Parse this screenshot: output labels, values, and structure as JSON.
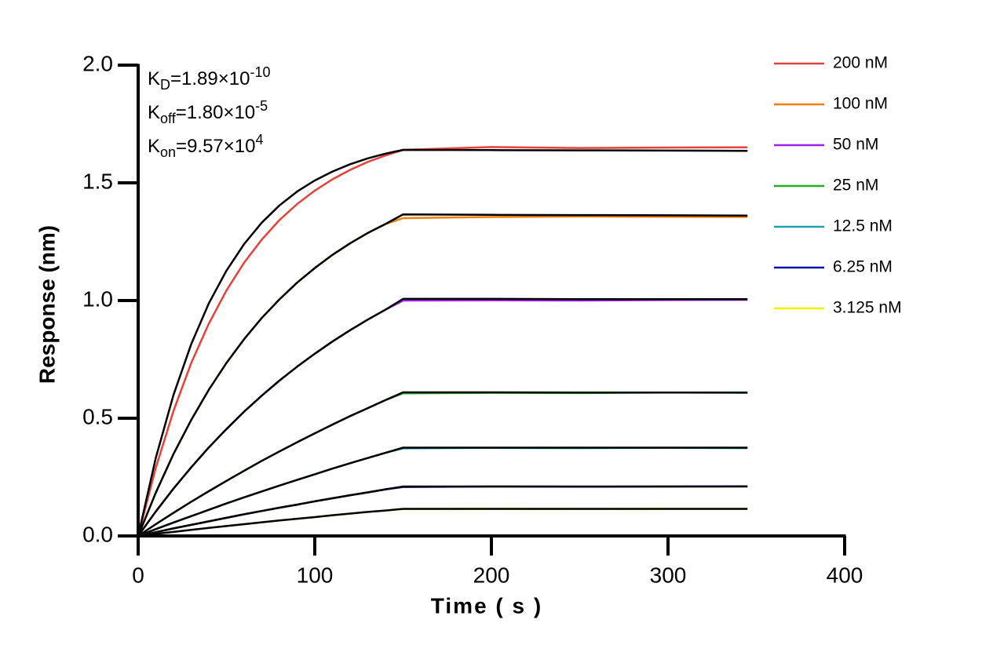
{
  "chart_data": {
    "type": "line",
    "xlabel": "Time ( s )",
    "ylabel": "Response (nm)",
    "annotations": [
      {
        "main": "K",
        "sub": "D",
        "text": "=1.89×10",
        "sup": "-10"
      },
      {
        "main": "K",
        "sub": "off",
        "text": "=1.80×10",
        "sup": "-5"
      },
      {
        "main": "K",
        "sub": "on",
        "text": "=9.57×10",
        "sup": "4"
      }
    ],
    "xlim": [
      0,
      400
    ],
    "xticks": [
      0,
      100,
      200,
      300,
      400
    ],
    "ylim": [
      0,
      2
    ],
    "yticks": [
      {
        "value": 0,
        "label": "0.0"
      },
      0.5,
      {
        "value": 1,
        "label": "1.0"
      },
      1.5,
      {
        "value": 2,
        "label": "2.0"
      }
    ],
    "fit_color": "#000000",
    "x": [
      0,
      10,
      20,
      30,
      40,
      50,
      60,
      70,
      80,
      90,
      100,
      110,
      120,
      130,
      140,
      150,
      200,
      250,
      300,
      345
    ],
    "series": [
      {
        "name": "200 nM",
        "color": "#e8413c",
        "values": [
          0,
          0.29,
          0.531,
          0.734,
          0.902,
          1.043,
          1.161,
          1.259,
          1.342,
          1.41,
          1.467,
          1.515,
          1.555,
          1.589,
          1.616,
          1.64,
          1.652,
          1.648,
          1.65,
          1.651
        ],
        "fit_values": [
          0,
          0.332,
          0.599,
          0.814,
          0.988,
          1.127,
          1.24,
          1.331,
          1.404,
          1.463,
          1.51,
          1.548,
          1.579,
          1.604,
          1.624,
          1.64,
          1.639,
          1.638,
          1.637,
          1.636
        ]
      },
      {
        "name": "100 nM",
        "color": "#f07f0f",
        "values": [
          0,
          0.184,
          0.348,
          0.492,
          0.621,
          0.735,
          0.836,
          0.926,
          1.005,
          1.076,
          1.138,
          1.194,
          1.243,
          1.287,
          1.325,
          1.35,
          1.355,
          1.357,
          1.356,
          1.355
        ],
        "fit_values": [
          0,
          0.184,
          0.348,
          0.492,
          0.621,
          0.735,
          0.836,
          0.926,
          1.005,
          1.076,
          1.138,
          1.194,
          1.243,
          1.287,
          1.325,
          1.366,
          1.364,
          1.363,
          1.362,
          1.361
        ]
      },
      {
        "name": "50 nM",
        "color": "#a020f0",
        "values": [
          0,
          0.104,
          0.201,
          0.291,
          0.376,
          0.454,
          0.528,
          0.596,
          0.66,
          0.719,
          0.774,
          0.826,
          0.874,
          0.919,
          0.961,
          1.0,
          1.001,
          1.0,
          1.002,
          1.003
        ],
        "fit_values": [
          0,
          0.104,
          0.201,
          0.291,
          0.376,
          0.454,
          0.528,
          0.596,
          0.66,
          0.719,
          0.774,
          0.826,
          0.874,
          0.919,
          0.961,
          1.007,
          1.007,
          1.006,
          1.006,
          1.006
        ]
      },
      {
        "name": "25 nM",
        "color": "#22b022",
        "values": [
          0,
          0.05,
          0.098,
          0.145,
          0.19,
          0.234,
          0.277,
          0.319,
          0.359,
          0.398,
          0.436,
          0.473,
          0.509,
          0.543,
          0.577,
          0.606,
          0.608,
          0.607,
          0.609,
          0.608
        ],
        "fit_values": [
          0,
          0.05,
          0.098,
          0.145,
          0.19,
          0.234,
          0.277,
          0.319,
          0.359,
          0.398,
          0.436,
          0.473,
          0.509,
          0.543,
          0.577,
          0.61,
          0.61,
          0.609,
          0.609,
          0.609
        ]
      },
      {
        "name": "12.5 nM",
        "color": "#1fa0b0",
        "values": [
          0,
          0.029,
          0.057,
          0.084,
          0.111,
          0.138,
          0.164,
          0.189,
          0.214,
          0.238,
          0.262,
          0.286,
          0.309,
          0.331,
          0.353,
          0.372,
          0.374,
          0.373,
          0.374,
          0.373
        ],
        "fit_values": [
          0,
          0.029,
          0.057,
          0.084,
          0.111,
          0.138,
          0.164,
          0.189,
          0.214,
          0.238,
          0.262,
          0.286,
          0.309,
          0.331,
          0.353,
          0.375,
          0.375,
          0.375,
          0.375,
          0.375
        ]
      },
      {
        "name": "6.25 nM",
        "color": "#0a10b0",
        "values": [
          0,
          0.016,
          0.032,
          0.047,
          0.062,
          0.077,
          0.092,
          0.106,
          0.12,
          0.133,
          0.147,
          0.16,
          0.173,
          0.185,
          0.198,
          0.208,
          0.21,
          0.209,
          0.21,
          0.211
        ],
        "fit_values": [
          0,
          0.016,
          0.032,
          0.047,
          0.062,
          0.077,
          0.092,
          0.106,
          0.12,
          0.133,
          0.147,
          0.16,
          0.173,
          0.185,
          0.198,
          0.21,
          0.21,
          0.21,
          0.21,
          0.21
        ]
      },
      {
        "name": "3.125 nM",
        "color": "#f0f000",
        "values": [
          0,
          0.009,
          0.017,
          0.026,
          0.034,
          0.042,
          0.05,
          0.058,
          0.066,
          0.073,
          0.08,
          0.088,
          0.095,
          0.102,
          0.108,
          0.114,
          0.115,
          0.114,
          0.115,
          0.115
        ],
        "fit_values": [
          0,
          0.009,
          0.017,
          0.026,
          0.034,
          0.042,
          0.05,
          0.058,
          0.066,
          0.073,
          0.08,
          0.088,
          0.095,
          0.102,
          0.108,
          0.115,
          0.115,
          0.115,
          0.115,
          0.115
        ]
      }
    ]
  }
}
